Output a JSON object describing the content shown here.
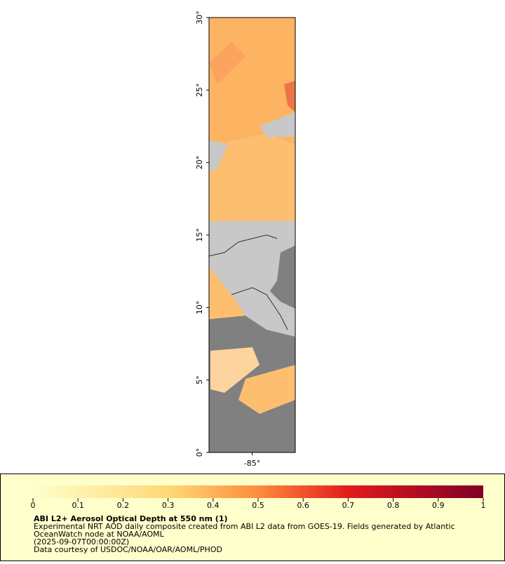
{
  "map": {
    "xlim": [
      -88,
      -82
    ],
    "ylim": [
      0,
      30
    ],
    "xticks": [
      {
        "value": -85,
        "label": "-85°"
      }
    ],
    "yticks": [
      {
        "value": 0,
        "label": "0°"
      },
      {
        "value": 5,
        "label": "5°"
      },
      {
        "value": 10,
        "label": "10°"
      },
      {
        "value": 15,
        "label": "15°"
      },
      {
        "value": 20,
        "label": "20°"
      },
      {
        "value": 25,
        "label": "25°"
      },
      {
        "value": 30,
        "label": "30°"
      }
    ]
  },
  "colorbar": {
    "lim": [
      0,
      1
    ],
    "ticks": [
      0,
      0.1,
      0.2,
      0.3,
      0.4,
      0.5,
      0.6,
      0.7,
      0.8,
      0.9,
      1
    ]
  },
  "legend": {
    "title": "ABI L2+ Aerosol Optical Depth at 550 nm (1)",
    "lines": [
      "Experimental NRT AOD daily composite created from ABI L2 data from GOES-19. Fields generated by Atlantic",
      "OceanWatch node at NOAA/AOML",
      "(2025-09-07T00:00:00Z)",
      "Data courtesy of USDOC/NOAA/OAR/AOML/PHOD"
    ]
  }
}
